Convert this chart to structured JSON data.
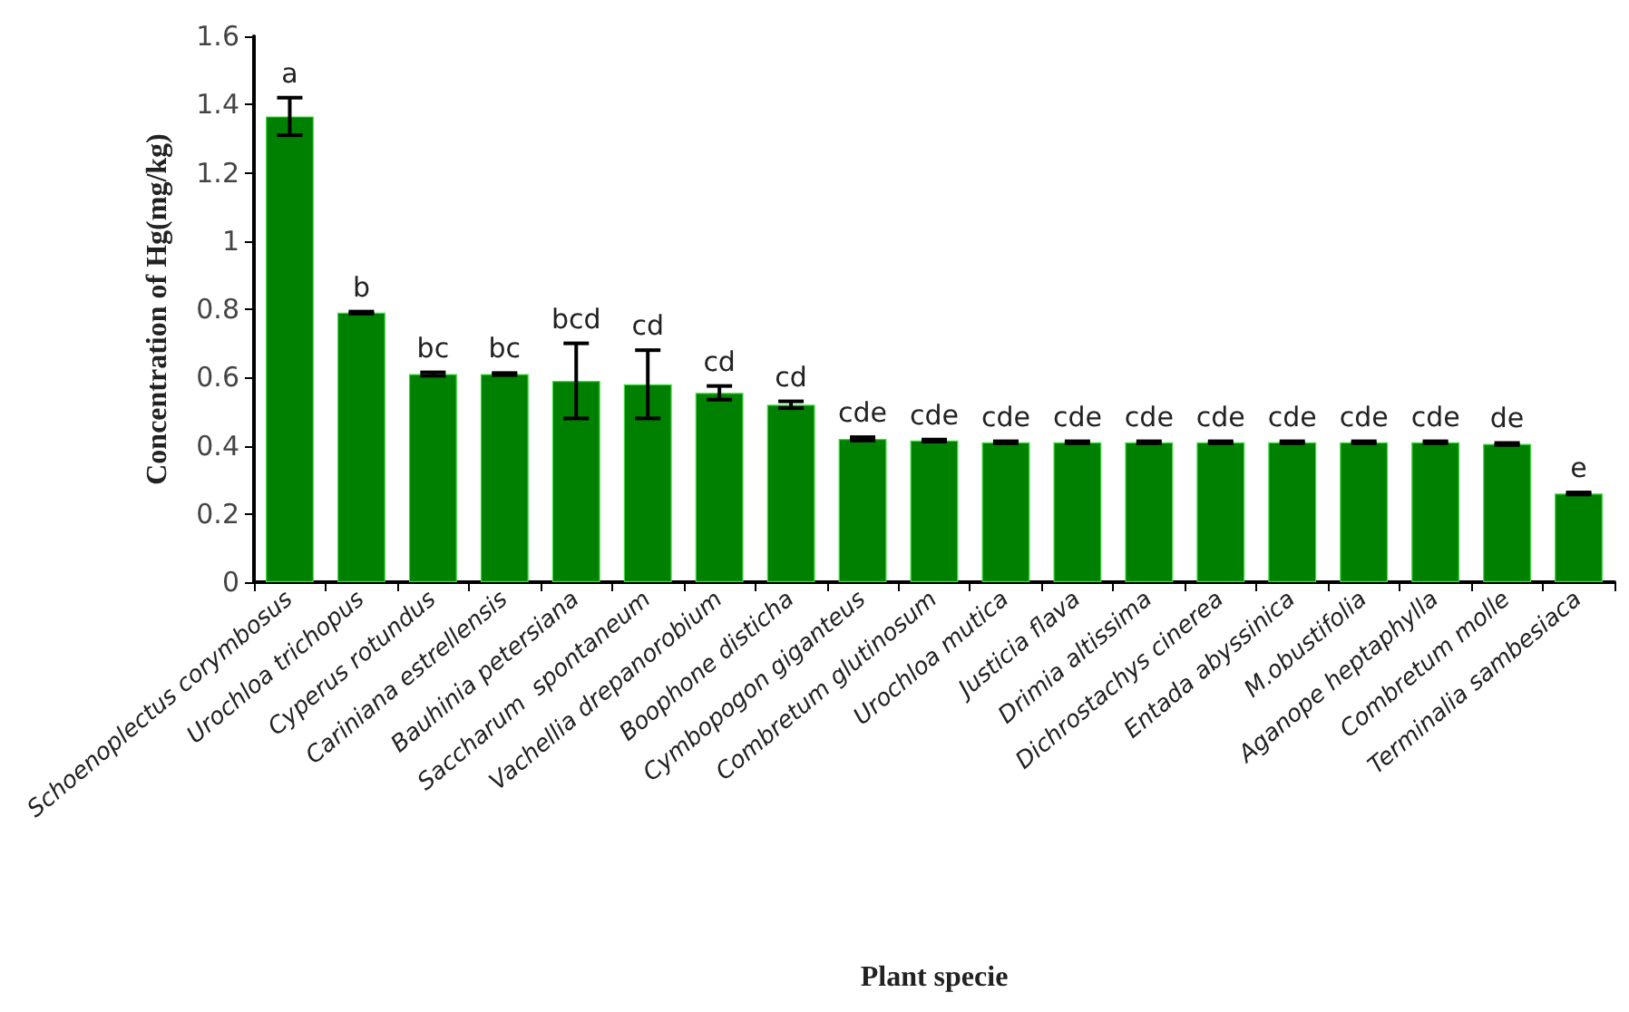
{
  "chart_data": {
    "type": "bar",
    "xlabel": "Plant specie",
    "ylabel": "Concentration of Hg(mg/kg)",
    "categories": [
      "Schoenoplectus corymbosus",
      "Urochloa trichopus",
      "Cyperus rotundus",
      "Cariniana estrellensis",
      "Bauhinia petersiana",
      "Saccharum  spontaneum",
      "Vachellia drepanorobium",
      "Boophone disticha",
      "Cymbopogon giganteus",
      "Combretum glutinosum",
      "Urochloa mutica",
      "Justicia flava",
      "Drimia altissima",
      "Dichrostachys cinerea",
      "Entada abyssinica",
      "M.obustifolia",
      "Aganope heptaphylla",
      "Combretum molle",
      "Terminalia sambesiaca"
    ],
    "values": [
      1.365,
      0.79,
      0.61,
      0.61,
      0.59,
      0.58,
      0.555,
      0.52,
      0.42,
      0.415,
      0.41,
      0.41,
      0.41,
      0.41,
      0.41,
      0.41,
      0.41,
      0.405,
      0.26
    ],
    "errors": [
      0.055,
      0.003,
      0.005,
      0.003,
      0.11,
      0.1,
      0.02,
      0.01,
      0.005,
      0.003,
      0.003,
      0.003,
      0.003,
      0.003,
      0.003,
      0.003,
      0.003,
      0.003,
      0.003
    ],
    "value_labels": [
      "a",
      "b",
      "bc",
      "bc",
      "bcd",
      "cd",
      "cd",
      "cd",
      "cde",
      "cde",
      "cde",
      "cde",
      "cde",
      "cde",
      "cde",
      "cde",
      "cde",
      "de",
      "e"
    ],
    "color": "#008000",
    "ylim": [
      0,
      1.6
    ],
    "yticks": [
      0,
      0.2,
      0.4,
      0.6,
      0.8,
      1,
      1.2,
      1.4,
      1.6
    ],
    "grid": false
  }
}
